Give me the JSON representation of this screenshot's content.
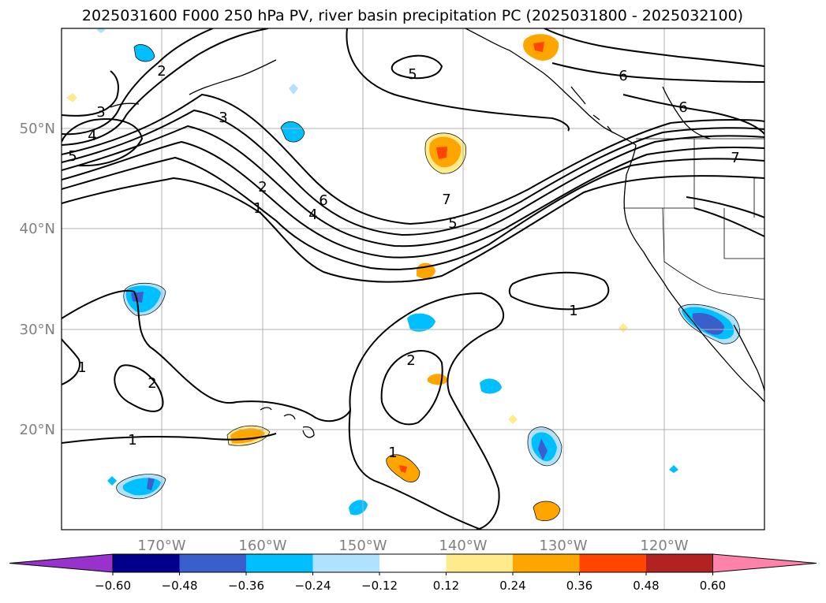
{
  "title": "2025031600 F000 250 hPa PV, river basin precipitation PC (2025031800 - 2025032100)",
  "map": {
    "projection": "cylindrical",
    "lon_range": [
      -180,
      -110
    ],
    "lat_range": [
      10,
      60
    ],
    "gridlines": true,
    "lat_ticks": [
      "20°N",
      "30°N",
      "40°N",
      "50°N"
    ],
    "lon_ticks": [
      "170°W",
      "160°W",
      "150°W",
      "140°W",
      "130°W",
      "120°W"
    ]
  },
  "pv_contours": {
    "labels": [
      "1",
      "1",
      "1",
      "1",
      "1",
      "2",
      "2",
      "2",
      "2",
      "3",
      "3",
      "4",
      "4",
      "5",
      "5",
      "5",
      "6",
      "6",
      "6",
      "7",
      "7"
    ]
  },
  "colorbar": {
    "ticks": [
      "−0.60",
      "−0.48",
      "−0.36",
      "−0.24",
      "−0.12",
      "0.12",
      "0.24",
      "0.36",
      "0.48",
      "0.60"
    ],
    "colors": [
      "#9932cc",
      "#00008b",
      "#3a5fcd",
      "#00bfff",
      "#b0e2ff",
      "#ffffff",
      "#ffeb8b",
      "#ffa500",
      "#ff4500",
      "#b22222",
      "#ff82ab"
    ]
  }
}
